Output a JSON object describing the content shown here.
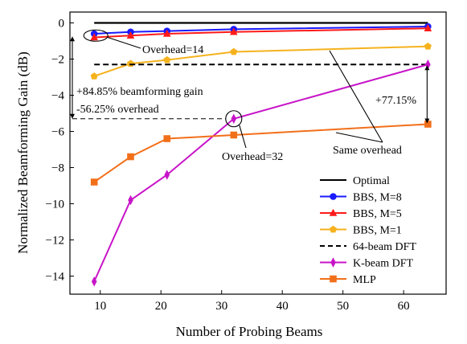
{
  "chart_data": {
    "type": "line",
    "xlabel": "Number of Probing Beams",
    "ylabel": "Normalized Beamforming Gain (dB)",
    "xlim": [
      5,
      67
    ],
    "ylim": [
      -15,
      0.6
    ],
    "xticks": [
      10,
      20,
      30,
      40,
      50,
      60
    ],
    "yticks": [
      0,
      -2,
      -4,
      -6,
      -8,
      -10,
      -12,
      -14
    ],
    "grid": false,
    "legend_position": "bottom-right",
    "series": [
      {
        "name": "Optimal",
        "color": "#000000",
        "dash": "solid",
        "marker": "none",
        "x": [
          9,
          64
        ],
        "y": [
          0,
          0
        ]
      },
      {
        "name": "BBS, M=8",
        "color": "#1a1aff",
        "dash": "solid",
        "marker": "circle",
        "x": [
          9,
          15,
          21,
          32,
          64
        ],
        "y": [
          -0.6,
          -0.5,
          -0.45,
          -0.35,
          -0.2
        ]
      },
      {
        "name": "BBS, M=5",
        "color": "#ff1a1a",
        "dash": "solid",
        "marker": "triangle",
        "x": [
          9,
          15,
          21,
          32,
          64
        ],
        "y": [
          -0.8,
          -0.7,
          -0.6,
          -0.5,
          -0.3
        ]
      },
      {
        "name": "BBS, M=1",
        "color": "#f5b21e",
        "dash": "solid",
        "marker": "pentagon",
        "x": [
          9,
          15,
          21,
          32,
          64
        ],
        "y": [
          -2.95,
          -2.25,
          -2.05,
          -1.6,
          -1.3
        ]
      },
      {
        "name": "64-beam DFT",
        "color": "#000000",
        "dash": "dashed",
        "marker": "none",
        "x": [
          9,
          64
        ],
        "y": [
          -2.3,
          -2.3
        ]
      },
      {
        "name": "K-beam DFT",
        "color": "#c814c8",
        "dash": "solid",
        "marker": "diamond",
        "x": [
          9,
          15,
          21,
          32,
          64
        ],
        "y": [
          -14.3,
          -9.8,
          -8.4,
          -5.3,
          -2.3
        ]
      },
      {
        "name": "MLP",
        "color": "#f26f1a",
        "dash": "solid",
        "marker": "square",
        "x": [
          9,
          15,
          21,
          32,
          64
        ],
        "y": [
          -8.8,
          -7.4,
          -6.4,
          -6.2,
          -5.6
        ]
      }
    ],
    "annotations": {
      "overhead14": "Overhead=14",
      "gain": "+84.85% beamforming gain",
      "overhead_reduction": "-56.25% overhead",
      "overhead32": "Overhead=32",
      "improvement": "+77.15%",
      "same_overhead": "Same overhead"
    }
  }
}
